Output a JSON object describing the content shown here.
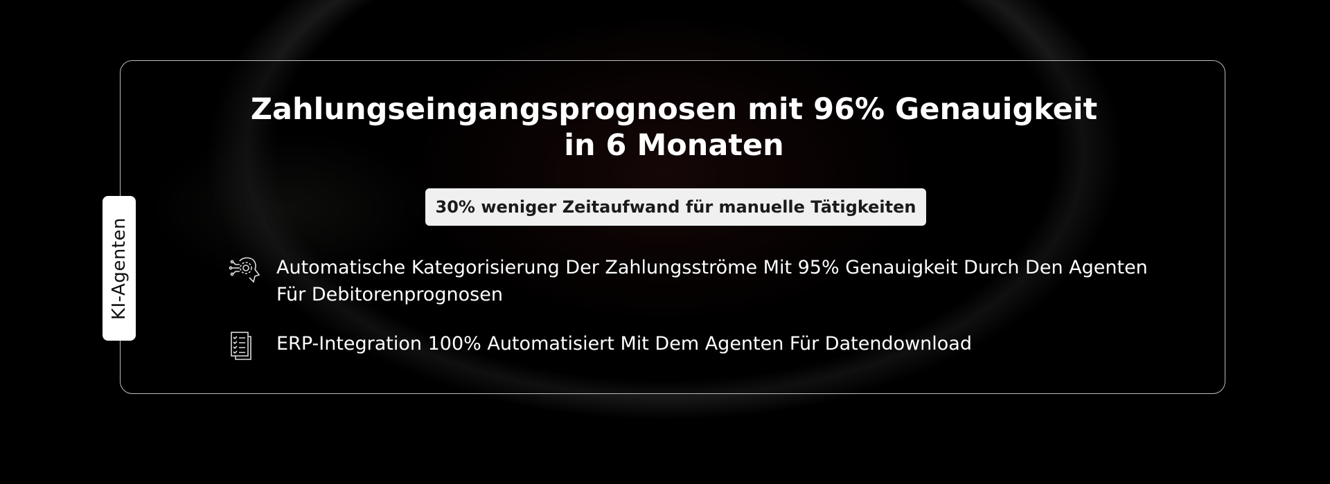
{
  "side_label": "KI-Agenten",
  "title_line1": "Zahlungseingangsprognosen mit 96% Genauigkeit",
  "title_line2": "in 6 Monaten",
  "badge": "30% weniger Zeitaufwand für manuelle Tätigkeiten",
  "items": [
    {
      "icon": "ai-head-gear-icon",
      "text": "Automatische Kategorisierung Der Zahlungsströme Mit 95% Genauigkeit Durch Den Agenten Für Debitorenprognosen"
    },
    {
      "icon": "checklist-icon",
      "text": "ERP-Integration 100% Automatisiert Mit Dem Agenten Für Datendownload"
    }
  ]
}
